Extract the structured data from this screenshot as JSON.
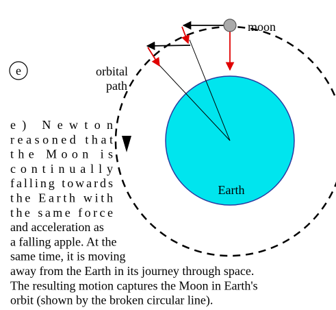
{
  "label": "e",
  "moon_label": "moon",
  "earth_label": "Earth",
  "orbit_label": [
    "orbital",
    "path"
  ],
  "caption_lines": [
    "e) Newton",
    "reasoned that",
    "the Moon is",
    "continually",
    "falling towards",
    "the Earth with",
    "the same force",
    "and acceleration as",
    "a falling apple. At the",
    "same time, it is moving",
    "away from the Earth in its journey through space.",
    "The resulting motion captures the Moon in Earth's",
    "orbit (shown by the broken circular line)."
  ]
}
